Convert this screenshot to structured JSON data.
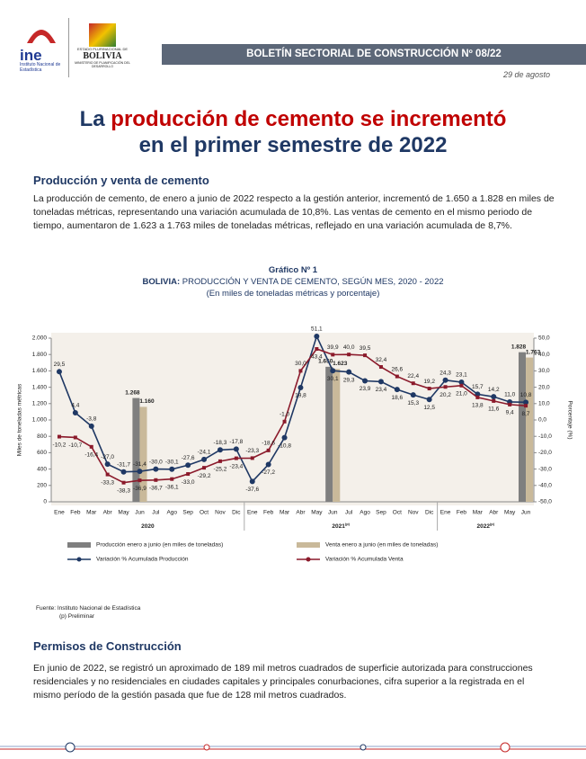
{
  "header": {
    "logo_text": "ine",
    "logo_sub": "Instituto Nacional de Estadística",
    "gov_top": "ESTADO PLURINACIONAL DE",
    "gov_name": "BOLIVIA",
    "gov_sub": "MINISTERIO DE PLANIFICACIÓN DEL DESARROLLO",
    "banner": "BOLETÍN SECTORIAL DE CONSTRUCCIÓN Nº 08/22",
    "date": "29 de agosto"
  },
  "title": {
    "part1": "La ",
    "highlight": "producción de cemento se incrementó",
    "part2": "en el primer semestre de 2022"
  },
  "section1": {
    "heading": "Producción y venta de cemento",
    "text": "La producción de cemento, de enero a junio de 2022 respecto a la gestión anterior, incrementó de 1.650 a 1.828 en miles de toneladas métricas, representando una variación acumulada de 10,8%. Las ventas de cemento en el mismo periodo de tiempo, aumentaron de 1.623 a 1.763 miles de toneladas métricas, reflejado en una variación acumulada de 8,7%."
  },
  "chart_caption": {
    "number": "Gráfico Nº 1",
    "country": "BOLIVIA:",
    "title": " PRODUCCIÓN Y VENTA DE CEMENTO, SEGÚN MES, 2020 - 2022",
    "subtitle": "(En miles de toneladas métricas y porcentaje)"
  },
  "chart_data": {
    "type": "combo",
    "y_label": "Miles de toneladas métricas",
    "y2_label": "Porcentaje (%)",
    "categories": [
      "Ene",
      "Feb",
      "Mar",
      "Abr",
      "May",
      "Jun",
      "Jul",
      "Ago",
      "Sep",
      "Oct",
      "Nov",
      "Dic",
      "Ene",
      "Feb",
      "Mar",
      "Abr",
      "May",
      "Jun",
      "Jul",
      "Ago",
      "Sep",
      "Oct",
      "Nov",
      "Dic",
      "Ene",
      "Feb",
      "Mar",
      "Abr",
      "May",
      "Jun"
    ],
    "groups": [
      {
        "label": "2020"
      },
      {
        "label": "2021",
        "note": "(p)"
      },
      {
        "label": "2022",
        "note": "(p)"
      }
    ],
    "ylim": [
      0,
      2000
    ],
    "yticks": [
      0,
      {
        "value": 200,
        "label": "200"
      },
      {
        "value": 400,
        "label": "400"
      },
      {
        "value": 600,
        "label": "600"
      },
      {
        "value": 800,
        "label": "800"
      },
      {
        "value": 1000,
        "label": "1.000"
      },
      {
        "value": 1200,
        "label": "1.200"
      },
      {
        "value": 1400,
        "label": "1.400"
      },
      {
        "value": 1600,
        "label": "1.600"
      },
      {
        "value": 1800,
        "label": "1.800"
      },
      {
        "value": 2000,
        "label": "2.000"
      }
    ],
    "y2lim": [
      -50,
      50
    ],
    "y2ticks": [
      {
        "value": -50,
        "label": "-50,0"
      },
      {
        "value": -40,
        "label": "-40,0"
      },
      {
        "value": -30,
        "label": "-30,0"
      },
      {
        "value": -20,
        "label": "-20,0"
      },
      {
        "value": -10,
        "label": "-10,0"
      },
      {
        "value": 0,
        "label": "0,0"
      },
      {
        "value": 10,
        "label": "10,0"
      },
      {
        "value": 20,
        "label": "20,0"
      },
      {
        "value": 30,
        "label": "30,0"
      },
      {
        "value": 40,
        "label": "40,0"
      },
      {
        "value": 50,
        "label": "50,0"
      }
    ],
    "series": [
      {
        "name": "Producción enero a junio (en miles de toneladas)",
        "kind": "bar",
        "color": "#7f7f7f",
        "values": [
          null,
          null,
          null,
          null,
          null,
          1268,
          null,
          null,
          null,
          null,
          null,
          null,
          null,
          null,
          null,
          null,
          null,
          1650,
          null,
          null,
          null,
          null,
          null,
          null,
          null,
          null,
          null,
          null,
          null,
          1828
        ],
        "value_labels": [
          null,
          null,
          null,
          null,
          null,
          "1.268",
          null,
          null,
          null,
          null,
          null,
          null,
          null,
          null,
          null,
          null,
          null,
          "1.650",
          null,
          null,
          null,
          null,
          null,
          null,
          null,
          null,
          null,
          null,
          null,
          "1.828"
        ]
      },
      {
        "name": "Venta enero a junio (en miles de toneladas)",
        "kind": "bar",
        "color": "#c9b99a",
        "values": [
          null,
          null,
          null,
          null,
          null,
          1160,
          null,
          null,
          null,
          null,
          null,
          null,
          null,
          null,
          null,
          null,
          null,
          1623,
          null,
          null,
          null,
          null,
          null,
          null,
          null,
          null,
          null,
          null,
          null,
          1763
        ],
        "value_labels": [
          null,
          null,
          null,
          null,
          null,
          "1.160",
          null,
          null,
          null,
          null,
          null,
          null,
          null,
          null,
          null,
          null,
          null,
          "1.623",
          null,
          null,
          null,
          null,
          null,
          null,
          null,
          null,
          null,
          null,
          null,
          "1.763"
        ]
      },
      {
        "name": "Variación % Acumulada Producción",
        "kind": "line",
        "axis": "y2",
        "color": "#1f3864",
        "values": [
          29.5,
          4.4,
          -3.8,
          -27.0,
          -31.7,
          -31.4,
          -30.0,
          -30.1,
          -27.6,
          -24.1,
          -18.3,
          -17.8,
          -37.6,
          -27.2,
          -10.8,
          19.8,
          51.1,
          30.1,
          29.3,
          23.9,
          23.4,
          18.6,
          15.3,
          12.5,
          24.3,
          23.1,
          15.7,
          14.2,
          11.0,
          10.8
        ],
        "value_labels": [
          "29,5",
          "4,4",
          "-3,8",
          "-27,0",
          "-31,7",
          "-31,4",
          "-30,0",
          "-30,1",
          "-27,6",
          "-24,1",
          "-18,3",
          "-17,8",
          "-37,6",
          "-27,2",
          "-10,8",
          "19,8",
          "51,1",
          "30,1",
          "29,3",
          "23,9",
          "23,4",
          "18,6",
          "15,3",
          "12,5",
          "24,3",
          "23,1",
          "15,7",
          "14,2",
          "11,0",
          "10,8"
        ]
      },
      {
        "name": "Variación % Acumulada Venta",
        "kind": "line",
        "axis": "y2",
        "color": "#8b1a2b",
        "values": [
          -10.2,
          -10.7,
          -16.4,
          -33.3,
          -38.3,
          -36.9,
          -36.7,
          -36.1,
          -33.0,
          -29.2,
          -25.2,
          -23.4,
          -23.3,
          -18.6,
          -1.0,
          30.0,
          43.4,
          39.9,
          40.0,
          39.5,
          32.4,
          26.6,
          22.4,
          19.2,
          20.2,
          21.0,
          13.8,
          11.6,
          9.4,
          8.7
        ],
        "value_labels": [
          "-10,2",
          "-10,7",
          "-16,4",
          "-33,3",
          "-38,3",
          "-36,9",
          "-36,7",
          "-36,1",
          "-33,0",
          "-29,2",
          "-25,2",
          "-23,4",
          "-23,3",
          "-18,6",
          "-1,0",
          "30,0",
          "43,4",
          "39,9",
          "40,0",
          "39,5",
          "32,4",
          "26,6",
          "22,4",
          "19,2",
          "20,2",
          "21,0",
          "13,8",
          "11,6",
          "9,4",
          "8,7"
        ]
      }
    ]
  },
  "source": {
    "line1": "Fuente: Instituto Nacional de Estadística",
    "line2": "(p) Preliminar"
  },
  "section2": {
    "heading": "Permisos de Construcción",
    "text": "En junio de 2022, se registró un aproximado de 189 mil metros cuadrados de superficie autorizada para construcciones residenciales y no residenciales en ciudades capitales y principales conurbaciones, cifra superior a la registrada en el mismo período de la gestión pasada que fue de 128 mil metros cuadrados."
  }
}
